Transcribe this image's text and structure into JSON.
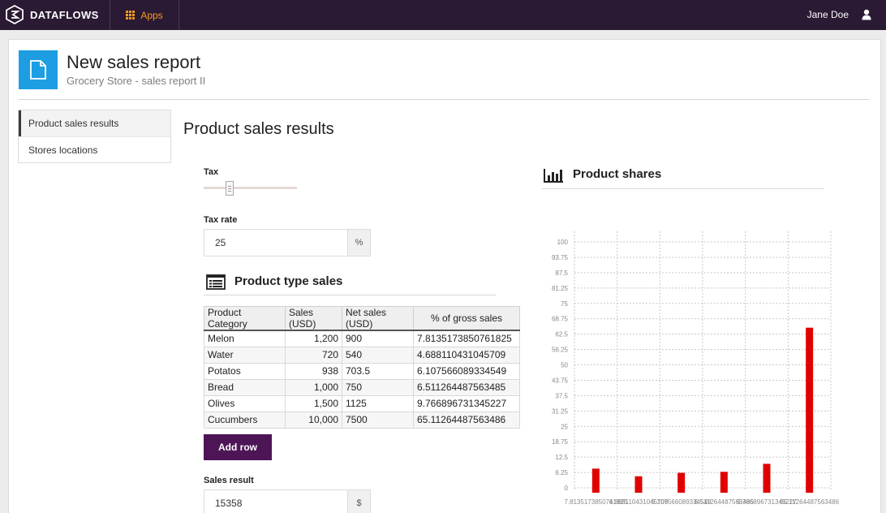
{
  "topbar": {
    "brand": "DATAFLOWS",
    "apps_label": "Apps",
    "user_name": "Jane Doe"
  },
  "header": {
    "title": "New sales report",
    "subtitle": "Grocery Store - sales report II"
  },
  "sidebar": {
    "items": [
      {
        "label": "Product sales results",
        "active": true
      },
      {
        "label": "Stores locations",
        "active": false
      }
    ]
  },
  "main": {
    "title": "Product sales results",
    "tax_label": "Tax",
    "tax_rate_label": "Tax rate",
    "tax_rate_value": "25",
    "tax_rate_unit": "%",
    "product_table": {
      "title": "Product type sales",
      "columns": [
        "Product Category",
        "Sales (USD)",
        "Net sales (USD)",
        "% of gross sales"
      ],
      "rows": [
        [
          "Melon",
          "1,200",
          "900",
          "7.8135173850761825"
        ],
        [
          "Water",
          "720",
          "540",
          "4.688110431045709"
        ],
        [
          "Potatos",
          "938",
          "703.5",
          "6.107566089334549"
        ],
        [
          "Bread",
          "1,000",
          "750",
          "6.51126448756348​5"
        ],
        [
          "Olives",
          "1,500",
          "1125",
          "9.766896731345227"
        ],
        [
          "Cucumbers",
          "10,000",
          "7500",
          "65.11264487563486"
        ]
      ]
    },
    "add_row_label": "Add row",
    "sales_result_label": "Sales result",
    "sales_result_value": "15358",
    "sales_result_unit": "$"
  },
  "chart_panel": {
    "title": "Product shares"
  },
  "chart_data": {
    "type": "bar",
    "categories": [
      "7.8135173850761825",
      "4.688110431045709",
      "6.107566089334549",
      "6.511264487563485",
      "9.766896731345227",
      "65.11264487563486"
    ],
    "values": [
      7.8135173850761825,
      4.688110431045709,
      6.107566089334549,
      6.511264487563485,
      9.766896731345227,
      65.11264487563486
    ],
    "yticks": [
      "0",
      "6.25",
      "12.5",
      "18.75",
      "25",
      "31.25",
      "37.5",
      "43.75",
      "50",
      "56.25",
      "62.5",
      "68.75",
      "75",
      "81.25",
      "87.5",
      "93.75",
      "100"
    ],
    "ylim": [
      0,
      100
    ],
    "grid": true,
    "bar_color": "#e00000"
  }
}
